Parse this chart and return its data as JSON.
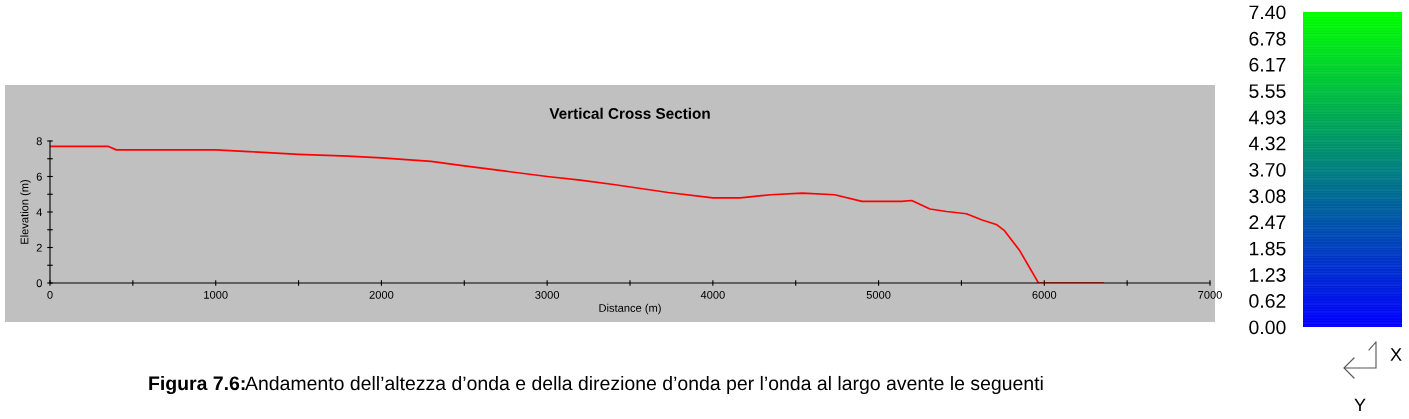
{
  "chart_data": {
    "type": "line",
    "title": "Vertical Cross Section",
    "xlabel": "Distance (m)",
    "ylabel": "Elevation (m)",
    "x": [
      0,
      350,
      400,
      1000,
      1200,
      1500,
      1800,
      2000,
      2300,
      2500,
      2750,
      3000,
      3200,
      3400,
      3730,
      4000,
      4166,
      4350,
      4540,
      4735,
      4900,
      5140,
      5200,
      5310,
      5410,
      5530,
      5625,
      5710,
      5760,
      5850,
      5965,
      6355
    ],
    "series": [
      {
        "color": "#ff0000",
        "values": [
          7.7,
          7.7,
          7.5,
          7.5,
          7.4,
          7.25,
          7.15,
          7.05,
          6.85,
          6.6,
          6.3,
          6.0,
          5.8,
          5.55,
          5.1,
          4.8,
          4.8,
          4.97,
          5.06,
          4.97,
          4.6,
          4.6,
          4.65,
          4.17,
          4.03,
          3.9,
          3.55,
          3.3,
          2.95,
          1.85,
          0,
          0
        ]
      }
    ],
    "xlim": [
      0,
      7000
    ],
    "ylim": [
      0,
      8
    ],
    "xticks": [
      0,
      {
        "value": 500,
        "label": null
      },
      1000,
      {
        "value": 1500,
        "label": null
      },
      2000,
      {
        "value": 2500,
        "label": null
      },
      3000,
      {
        "value": 3500,
        "label": null
      },
      4000,
      {
        "value": 4500,
        "label": null
      },
      5000,
      {
        "value": 5500,
        "label": null
      },
      6000,
      {
        "value": 6500,
        "label": null
      },
      7000
    ],
    "yticks": [
      0,
      {
        "value": 1,
        "label": null
      },
      2,
      {
        "value": 3,
        "label": null
      },
      4,
      {
        "value": 5,
        "label": null
      },
      6,
      {
        "value": 7,
        "label": null
      },
      8
    ],
    "clim": [
      0,
      7.4
    ],
    "cticks": [
      {
        "value": 0,
        "label": "0.00"
      },
      {
        "value": 0.62,
        "label": "0.62"
      },
      {
        "value": 1.23,
        "label": "1.23"
      },
      {
        "value": 1.85,
        "label": "1.85"
      },
      {
        "value": 2.47,
        "label": "2.47"
      },
      {
        "value": 3.08,
        "label": "3.08"
      },
      {
        "value": 3.7,
        "label": "3.70"
      },
      {
        "value": 4.32,
        "label": "4.32"
      },
      {
        "value": 4.93,
        "label": "4.93"
      },
      {
        "value": 5.55,
        "label": "5.55"
      },
      {
        "value": 6.17,
        "label": "6.17"
      },
      {
        "value": 6.78,
        "label": "6.78"
      },
      {
        "value": 7.4,
        "label": "7.40"
      }
    ],
    "colors": [
      "#0000ff",
      "#008080",
      "#00ff00"
    ],
    "grid": false,
    "legend": false,
    "annotations": [
      "Figura 7.6:",
      "Andamento dell’altezza d’onda e della direzione d’onda per l’onda al largo avente le seguenti",
      "X",
      "Y"
    ]
  }
}
